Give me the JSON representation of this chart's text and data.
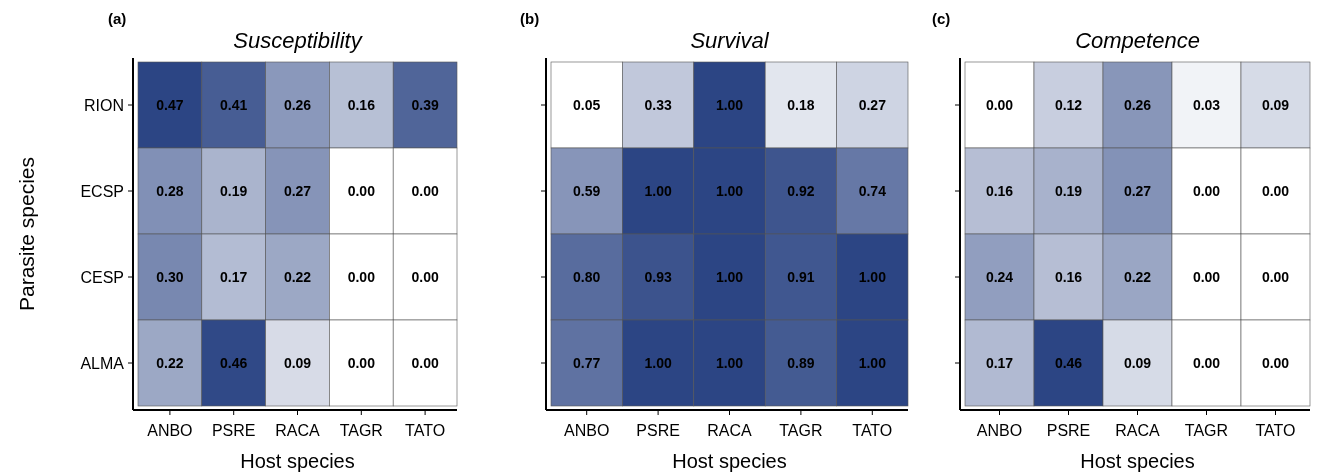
{
  "chart_data": [
    {
      "type": "heatmap",
      "title": "Susceptibility",
      "annotations": [
        "(a)"
      ],
      "xlabel": "Host species",
      "ylabel": "Parasite species",
      "categories": [
        "ANBO",
        "PSRE",
        "RACA",
        "TAGR",
        "TATO"
      ],
      "y_categories": [
        "RION",
        "ECSP",
        "CESP",
        "ALMA"
      ],
      "cells": [
        [
          0.47,
          0.41,
          0.26,
          0.16,
          0.39
        ],
        [
          0.28,
          0.19,
          0.27,
          0,
          0
        ],
        [
          0.3,
          0.17,
          0.22,
          0,
          0
        ],
        [
          0.22,
          0.46,
          0.09,
          0,
          0
        ]
      ],
      "cell_labels": [
        [
          "0.47",
          "0.41",
          "0.26",
          "0.16",
          "0.39"
        ],
        [
          "0.28",
          "0.19",
          "0.27",
          "0.00",
          "0.00"
        ],
        [
          "0.30",
          "0.17",
          "0.22",
          "0.00",
          "0.00"
        ],
        [
          "0.22",
          "0.46",
          "0.09",
          "0.00",
          "0.00"
        ]
      ]
    },
    {
      "type": "heatmap",
      "title": "Survival",
      "annotations": [
        "(b)"
      ],
      "xlabel": "Host species",
      "tick_labels": "x",
      "categories": [
        "ANBO",
        "PSRE",
        "RACA",
        "TAGR",
        "TATO"
      ],
      "y_categories": [
        null,
        null,
        null,
        null
      ],
      "cells": [
        [
          0.05,
          0.33,
          1,
          0.18,
          0.27
        ],
        [
          0.59,
          1,
          1,
          0.92,
          0.74
        ],
        [
          0.8,
          0.93,
          1,
          0.91,
          1
        ],
        [
          0.77,
          1,
          1,
          0.89,
          1
        ]
      ],
      "cell_labels": [
        [
          "0.05",
          "0.33",
          "1.00",
          "0.18",
          "0.27"
        ],
        [
          "0.59",
          "1.00",
          "1.00",
          "0.92",
          "0.74"
        ],
        [
          "0.80",
          "0.93",
          "1.00",
          "0.91",
          "1.00"
        ],
        [
          "0.77",
          "1.00",
          "1.00",
          "0.89",
          "1.00"
        ]
      ]
    },
    {
      "type": "heatmap",
      "title": "Competence",
      "annotations": [
        "(c)"
      ],
      "xlabel": "Host species",
      "tick_labels": "x",
      "categories": [
        "ANBO",
        "PSRE",
        "RACA",
        "TAGR",
        "TATO"
      ],
      "y_categories": [
        null,
        null,
        null,
        null
      ],
      "cells": [
        [
          0,
          0.12,
          0.26,
          0.03,
          0.09
        ],
        [
          0.16,
          0.19,
          0.27,
          0,
          0
        ],
        [
          0.24,
          0.16,
          0.22,
          0,
          0
        ],
        [
          0.17,
          0.46,
          0.09,
          0,
          0
        ]
      ],
      "cell_labels": [
        [
          "0.00",
          "0.12",
          "0.26",
          "0.03",
          "0.09"
        ],
        [
          "0.16",
          "0.19",
          "0.27",
          "0.00",
          "0.00"
        ],
        [
          "0.24",
          "0.16",
          "0.22",
          "0.00",
          "0.00"
        ],
        [
          "0.17",
          "0.46",
          "0.09",
          "0.00",
          "0.00"
        ]
      ]
    }
  ]
}
